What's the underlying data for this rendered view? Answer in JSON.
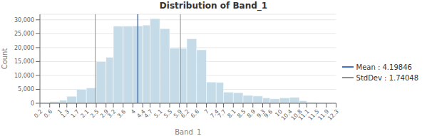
{
  "chart_data": {
    "type": "histogram",
    "title": "Distribution of Band_1",
    "x_label": "Band_1",
    "y_label": "Count",
    "bins": [
      0.2,
      0.6,
      1.0,
      1.3,
      1.7,
      2.1,
      2.5,
      2.9,
      3.2,
      3.6,
      4.0,
      4.4,
      4.7,
      5.1,
      5.5,
      5.9,
      6.2,
      6.6,
      7.0,
      7.4,
      7.7,
      8.1,
      8.5,
      8.9,
      9.3,
      9.6,
      10.0,
      10.4,
      10.8,
      11.1,
      11.5,
      11.9,
      12.3
    ],
    "counts": [
      250,
      600,
      1100,
      2500,
      5000,
      5500,
      15000,
      16500,
      27700,
      27700,
      27800,
      28100,
      30400,
      26800,
      19800,
      19700,
      23200,
      19200,
      7600,
      7500,
      4000,
      3800,
      2800,
      2600,
      1900,
      1600,
      1900,
      2100,
      900,
      350,
      200,
      80
    ],
    "color": "#c5dce8",
    "xlim": [
      0.2,
      12.3
    ],
    "xticks": [
      0.2,
      0.6,
      1,
      1.3,
      1.7,
      2.1,
      2.5,
      2.9,
      3.2,
      3.6,
      4,
      4.4,
      4.7,
      5.1,
      5.5,
      5.9,
      6.2,
      6.6,
      7,
      7.4,
      7.7,
      8.1,
      8.5,
      8.9,
      9.3,
      9.6,
      10,
      10.4,
      10.8,
      11.1,
      11.5,
      11.9,
      12.3
    ],
    "ylim": [
      0,
      32000
    ],
    "yticks": [
      0,
      {
        "value": 5000,
        "label": "5,000"
      },
      {
        "value": 10000,
        "label": "10,000"
      },
      {
        "value": 15000,
        "label": "15,000"
      },
      {
        "value": 20000,
        "label": "20,000"
      },
      {
        "value": 25000,
        "label": "25,000"
      },
      {
        "value": 30000,
        "label": "30,000"
      }
    ],
    "series": [
      {
        "name": "Mean : 4.19846",
        "type": "vline",
        "color": "#4472c4",
        "values": [
          4.19846
        ]
      },
      {
        "name": "StdDev : 1.74048",
        "type": "vline",
        "color": "#909090",
        "values": [
          2.45798,
          5.93894
        ]
      }
    ],
    "grid": true,
    "legend": "right"
  }
}
